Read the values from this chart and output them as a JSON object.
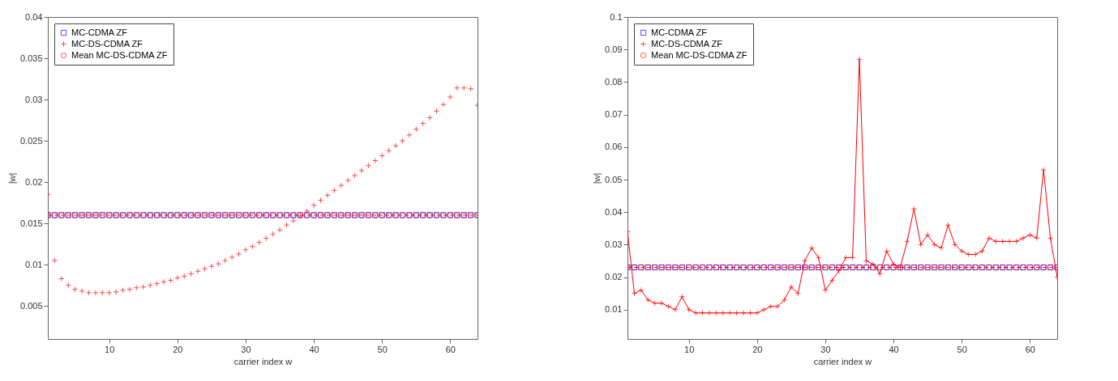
{
  "chart_data": [
    {
      "type": "line",
      "xlabel": "carrier index w",
      "ylabel": "|w|",
      "legend": "top left",
      "x": [
        1,
        2,
        3,
        4,
        5,
        6,
        7,
        8,
        9,
        10,
        11,
        12,
        13,
        14,
        15,
        16,
        17,
        18,
        19,
        20,
        21,
        22,
        23,
        24,
        25,
        26,
        27,
        28,
        29,
        30,
        31,
        32,
        33,
        34,
        35,
        36,
        37,
        38,
        39,
        40,
        41,
        42,
        43,
        44,
        45,
        46,
        47,
        48,
        49,
        50,
        51,
        52,
        53,
        54,
        55,
        56,
        57,
        58,
        59,
        60,
        61,
        62,
        63,
        64
      ],
      "xlim": [
        1,
        64
      ],
      "xticks": [
        10,
        20,
        30,
        40,
        50,
        60
      ],
      "ylim": [
        0.001,
        0.04
      ],
      "yticks": [
        0.005,
        0.01,
        0.015,
        0.02,
        0.025,
        0.03,
        0.035,
        0.04
      ],
      "series": [
        {
          "name": "MC-CDMA ZF",
          "type": "scatter",
          "color": "#0000ff",
          "marker": "square",
          "values": [
            0.016,
            0.016,
            0.016,
            0.016,
            0.016,
            0.016,
            0.016,
            0.016,
            0.016,
            0.016,
            0.016,
            0.016,
            0.016,
            0.016,
            0.016,
            0.016,
            0.016,
            0.016,
            0.016,
            0.016,
            0.016,
            0.016,
            0.016,
            0.016,
            0.016,
            0.016,
            0.016,
            0.016,
            0.016,
            0.016,
            0.016,
            0.016,
            0.016,
            0.016,
            0.016,
            0.016,
            0.016,
            0.016,
            0.016,
            0.016,
            0.016,
            0.016,
            0.016,
            0.016,
            0.016,
            0.016,
            0.016,
            0.016,
            0.016,
            0.016,
            0.016,
            0.016,
            0.016,
            0.016,
            0.016,
            0.016,
            0.016,
            0.016,
            0.016,
            0.016,
            0.016,
            0.016,
            0.016,
            0.016
          ]
        },
        {
          "name": "MC-DS-CDMA ZF",
          "type": "scatter",
          "color": "#ff0000",
          "marker": "cross",
          "values": [
            0.0185,
            0.0105,
            0.0083,
            0.0075,
            0.007,
            0.0068,
            0.0066,
            0.0066,
            0.0066,
            0.0066,
            0.0067,
            0.0069,
            0.007,
            0.0072,
            0.0073,
            0.0075,
            0.0077,
            0.0079,
            0.0081,
            0.0084,
            0.0086,
            0.0089,
            0.0092,
            0.0095,
            0.0098,
            0.0101,
            0.0105,
            0.0109,
            0.0113,
            0.0118,
            0.0122,
            0.0127,
            0.0132,
            0.0137,
            0.0142,
            0.0148,
            0.0153,
            0.0159,
            0.0165,
            0.0172,
            0.0178,
            0.0184,
            0.019,
            0.0196,
            0.0202,
            0.0208,
            0.0214,
            0.022,
            0.0226,
            0.0232,
            0.0238,
            0.0244,
            0.025,
            0.0257,
            0.0264,
            0.0271,
            0.0278,
            0.0286,
            0.0294,
            0.0303,
            0.0314,
            0.0314,
            0.0313,
            0.0293
          ]
        },
        {
          "name": "Mean MC-DS-CDMA ZF",
          "color": "#ff0000",
          "marker": "circle",
          "line_style": "dashed",
          "values": [
            0.016,
            0.016,
            0.016,
            0.016,
            0.016,
            0.016,
            0.016,
            0.016,
            0.016,
            0.016,
            0.016,
            0.016,
            0.016,
            0.016,
            0.016,
            0.016,
            0.016,
            0.016,
            0.016,
            0.016,
            0.016,
            0.016,
            0.016,
            0.016,
            0.016,
            0.016,
            0.016,
            0.016,
            0.016,
            0.016,
            0.016,
            0.016,
            0.016,
            0.016,
            0.016,
            0.016,
            0.016,
            0.016,
            0.016,
            0.016,
            0.016,
            0.016,
            0.016,
            0.016,
            0.016,
            0.016,
            0.016,
            0.016,
            0.016,
            0.016,
            0.016,
            0.016,
            0.016,
            0.016,
            0.016,
            0.016,
            0.016,
            0.016,
            0.016,
            0.016,
            0.016,
            0.016,
            0.016,
            0.016
          ]
        }
      ]
    },
    {
      "type": "line",
      "xlabel": "carrier index w",
      "ylabel": "|w|",
      "legend": "top left",
      "x": [
        1,
        2,
        3,
        4,
        5,
        6,
        7,
        8,
        9,
        10,
        11,
        12,
        13,
        14,
        15,
        16,
        17,
        18,
        19,
        20,
        21,
        22,
        23,
        24,
        25,
        26,
        27,
        28,
        29,
        30,
        31,
        32,
        33,
        34,
        35,
        36,
        37,
        38,
        39,
        40,
        41,
        42,
        43,
        44,
        45,
        46,
        47,
        48,
        49,
        50,
        51,
        52,
        53,
        54,
        55,
        56,
        57,
        58,
        59,
        60,
        61,
        62,
        63,
        64
      ],
      "xlim": [
        1,
        64
      ],
      "xticks": [
        10,
        20,
        30,
        40,
        50,
        60
      ],
      "ylim": [
        0.001,
        0.1
      ],
      "yticks": [
        0.01,
        0.02,
        0.03,
        0.04,
        0.05,
        0.06,
        0.07,
        0.08,
        0.09,
        0.1
      ],
      "series": [
        {
          "name": "MC-CDMA ZF",
          "type": "scatter",
          "color": "#0000ff",
          "marker": "square",
          "values": [
            0.023,
            0.023,
            0.023,
            0.023,
            0.023,
            0.023,
            0.023,
            0.023,
            0.023,
            0.023,
            0.023,
            0.023,
            0.023,
            0.023,
            0.023,
            0.023,
            0.023,
            0.023,
            0.023,
            0.023,
            0.023,
            0.023,
            0.023,
            0.023,
            0.023,
            0.023,
            0.023,
            0.023,
            0.023,
            0.023,
            0.023,
            0.023,
            0.023,
            0.023,
            0.023,
            0.023,
            0.023,
            0.023,
            0.023,
            0.023,
            0.023,
            0.023,
            0.023,
            0.023,
            0.023,
            0.023,
            0.023,
            0.023,
            0.023,
            0.023,
            0.023,
            0.023,
            0.023,
            0.023,
            0.023,
            0.023,
            0.023,
            0.023,
            0.023,
            0.023,
            0.023,
            0.023,
            0.023,
            0.023
          ]
        },
        {
          "name": "MC-DS-CDMA ZF",
          "color": "#ff0000",
          "marker": "cross",
          "line_style": "solid",
          "values": [
            0.034,
            0.015,
            0.016,
            0.013,
            0.012,
            0.012,
            0.011,
            0.01,
            0.014,
            0.01,
            0.009,
            0.009,
            0.009,
            0.009,
            0.009,
            0.009,
            0.009,
            0.009,
            0.009,
            0.009,
            0.01,
            0.011,
            0.011,
            0.013,
            0.017,
            0.015,
            0.025,
            0.029,
            0.026,
            0.016,
            0.019,
            0.022,
            0.026,
            0.026,
            0.087,
            0.025,
            0.024,
            0.021,
            0.028,
            0.024,
            0.023,
            0.031,
            0.041,
            0.03,
            0.033,
            0.03,
            0.029,
            0.036,
            0.03,
            0.028,
            0.027,
            0.027,
            0.028,
            0.032,
            0.031,
            0.031,
            0.031,
            0.031,
            0.032,
            0.033,
            0.032,
            0.053,
            0.032,
            0.02
          ]
        },
        {
          "name": "Mean MC-DS-CDMA ZF",
          "color": "#ff0000",
          "marker": "circle",
          "line_style": "dashed",
          "values": [
            0.023,
            0.023,
            0.023,
            0.023,
            0.023,
            0.023,
            0.023,
            0.023,
            0.023,
            0.023,
            0.023,
            0.023,
            0.023,
            0.023,
            0.023,
            0.023,
            0.023,
            0.023,
            0.023,
            0.023,
            0.023,
            0.023,
            0.023,
            0.023,
            0.023,
            0.023,
            0.023,
            0.023,
            0.023,
            0.023,
            0.023,
            0.023,
            0.023,
            0.023,
            0.023,
            0.023,
            0.023,
            0.023,
            0.023,
            0.023,
            0.023,
            0.023,
            0.023,
            0.023,
            0.023,
            0.023,
            0.023,
            0.023,
            0.023,
            0.023,
            0.023,
            0.023,
            0.023,
            0.023,
            0.023,
            0.023,
            0.023,
            0.023,
            0.023,
            0.023,
            0.023,
            0.023,
            0.023,
            0.023
          ]
        }
      ]
    }
  ]
}
